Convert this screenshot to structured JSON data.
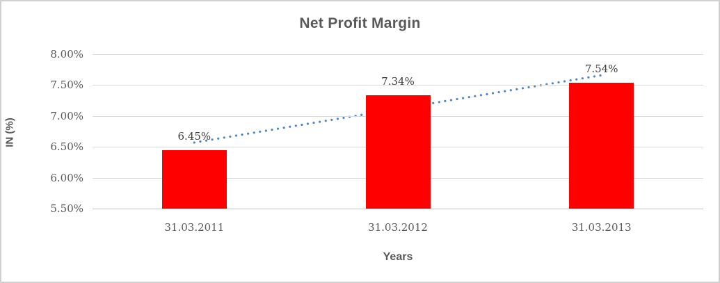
{
  "chart_data": {
    "type": "bar",
    "title": "Net Profit Margin",
    "xlabel": "Years",
    "ylabel": "IN (%)",
    "categories": [
      "31.03.2011",
      "31.03.2012",
      "31.03.2013"
    ],
    "values": [
      6.45,
      7.34,
      7.54
    ],
    "data_labels": [
      "6.45%",
      "7.34%",
      "7.54%"
    ],
    "ylim": [
      5.5,
      8.0
    ],
    "ytick_step": 0.5,
    "ytick_labels_top_to_bottom": [
      "8.00%",
      "7.50%",
      "7.00%",
      "6.50%",
      "6.00%",
      "5.50%"
    ],
    "grid": true,
    "legend": false,
    "bar_color": "#ff0000",
    "trendline": {
      "type": "linear",
      "style": "dotted",
      "color": "#4d86c6",
      "start_value": 6.57,
      "end_value": 7.66
    },
    "colors": {
      "title": "#595959",
      "tick_text": "#595959",
      "data_label_text": "#3f3f3f",
      "gridline": "#d9d9d9",
      "axis_line": "#c3c3c3",
      "frame_border": "#d0d0d0",
      "background": "#ffffff"
    }
  }
}
